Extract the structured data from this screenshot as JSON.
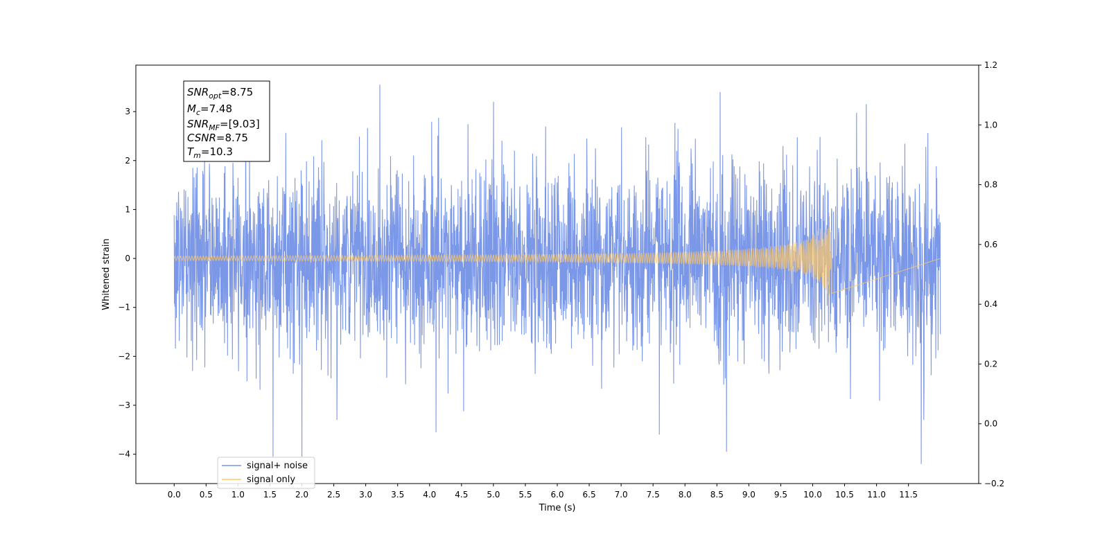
{
  "chart_data": {
    "type": "line",
    "xlabel": "Time (s)",
    "ylabel": "Whitened strain",
    "xlim": [
      -0.6,
      12.6
    ],
    "ylim": [
      -4.6,
      3.95
    ],
    "ylim_right": [
      -0.2,
      1.2
    ],
    "x_ticks": [
      0.0,
      0.5,
      1.0,
      1.5,
      2.0,
      2.5,
      3.0,
      3.5,
      4.0,
      4.5,
      5.0,
      5.5,
      6.0,
      6.5,
      7.0,
      7.5,
      8.0,
      8.5,
      9.0,
      9.5,
      10.0,
      10.5,
      11.0,
      11.5
    ],
    "x_tick_labels": [
      "0.0",
      "0.5",
      "1.0",
      "1.5",
      "2.0",
      "2.5",
      "3.0",
      "3.5",
      "4.0",
      "4.5",
      "5.0",
      "5.5",
      "6.0",
      "6.5",
      "7.0",
      "7.5",
      "8.0",
      "8.5",
      "9.0",
      "9.5",
      "10.0",
      "10.5",
      "11.0",
      "11.5"
    ],
    "y_ticks": [
      -4,
      -3,
      -2,
      -1,
      0,
      1,
      2,
      3
    ],
    "y_tick_labels": [
      "−4",
      "−3",
      "−2",
      "−1",
      "0",
      "1",
      "2",
      "3"
    ],
    "y_right_ticks": [
      -0.2,
      0.0,
      0.2,
      0.4,
      0.6,
      0.8,
      1.0,
      1.2
    ],
    "y_right_tick_labels": [
      "−0.2",
      "0.0",
      "0.2",
      "0.4",
      "0.6",
      "0.8",
      "1.0",
      "1.2"
    ],
    "grid": false,
    "legend_position": "lower-left",
    "series": [
      {
        "name": "signal+ noise",
        "color": "#7895e8",
        "description_values": {
          "t_start": 0.0,
          "t_end": 12.0,
          "noise_sigma": 1.0,
          "peaks": [
            [
              1.55,
              -4.05
            ],
            [
              2.0,
              -4.05
            ],
            [
              3.22,
              3.55
            ],
            [
              4.1,
              -3.55
            ],
            [
              7.6,
              -3.6
            ],
            [
              8.55,
              3.4
            ],
            [
              8.65,
              -3.95
            ],
            [
              11.7,
              -4.2
            ],
            [
              2.55,
              -3.3
            ],
            [
              5.0,
              3.2
            ]
          ]
        }
      },
      {
        "name": "signal only",
        "color": "#ffc966",
        "description_values": {
          "t_start": 0.0,
          "t_merger": 10.3,
          "t_end": 12.0,
          "peak_amplitude_upper": 1.17,
          "peak_amplitude_lower": -0.99
        }
      }
    ],
    "annotation": {
      "lines": [
        {
          "symbol": "SNR",
          "subscript": "opt",
          "value": "=8.75"
        },
        {
          "symbol": "M",
          "subscript": "c",
          "value": "=7.48"
        },
        {
          "symbol": "SNR",
          "subscript": "MF",
          "value": "=[9.03]"
        },
        {
          "symbol": "CSNR",
          "subscript": "",
          "value": "=8.75"
        },
        {
          "symbol": "T",
          "subscript": "m",
          "value": "=10.3"
        }
      ]
    }
  }
}
